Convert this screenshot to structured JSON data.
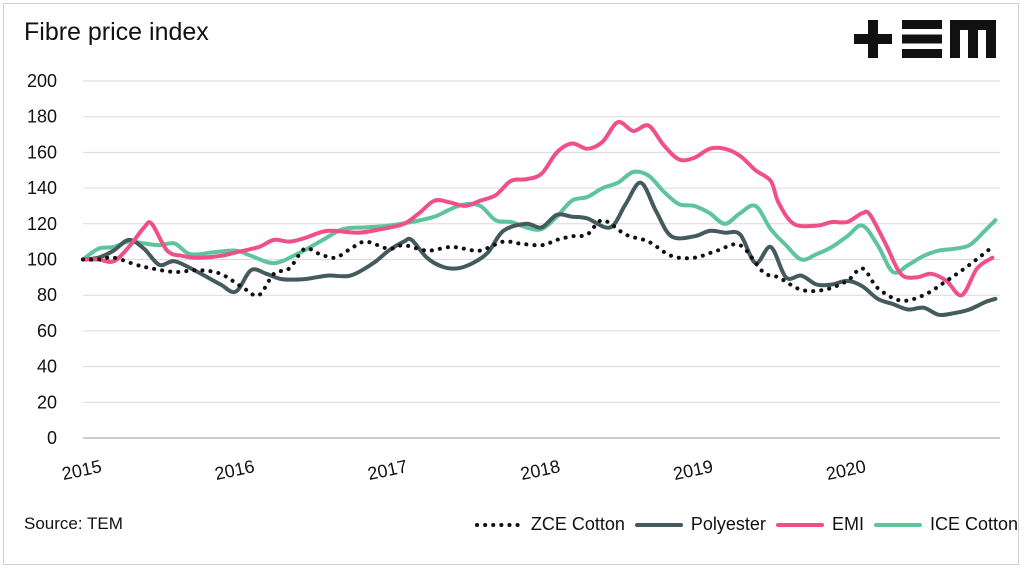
{
  "chart_data": {
    "type": "line",
    "title": "Fibre price index",
    "source": "Source: TEM",
    "brand": "TEM",
    "ylim": [
      0,
      200
    ],
    "yticks": [
      0,
      20,
      40,
      60,
      80,
      100,
      120,
      140,
      160,
      180,
      200
    ],
    "xlim": [
      2015,
      2021
    ],
    "xticks": [
      "2015",
      "2016",
      "2017",
      "2018",
      "2019",
      "2020"
    ],
    "grid": true,
    "legend": "bottom-right",
    "series": [
      {
        "name": "ZCE Cotton",
        "color": "#111111",
        "style": "dotted",
        "x": [
          2015.0,
          2015.1,
          2015.2,
          2015.35,
          2015.45,
          2015.6,
          2015.75,
          2015.9,
          2016.05,
          2016.15,
          2016.25,
          2016.35,
          2016.45,
          2016.55,
          2016.65,
          2016.75,
          2016.85,
          2017.0,
          2017.1,
          2017.25,
          2017.4,
          2017.5,
          2017.6,
          2017.75,
          2017.85,
          2018.0,
          2018.1,
          2018.2,
          2018.3,
          2018.4,
          2018.55,
          2018.7,
          2018.85,
          2019.0,
          2019.15,
          2019.3,
          2019.45,
          2019.55,
          2019.7,
          2019.85,
          2020.0,
          2020.1,
          2020.2,
          2020.35,
          2020.5,
          2020.65,
          2020.8,
          2020.95
        ],
        "y": [
          100,
          100,
          101,
          97,
          95,
          93,
          94,
          92,
          84,
          80,
          92,
          95,
          106,
          103,
          101,
          106,
          110,
          106,
          108,
          105,
          107,
          106,
          105,
          110,
          109,
          108,
          111,
          113,
          114,
          122,
          114,
          110,
          102,
          101,
          105,
          108,
          93,
          90,
          83,
          83,
          88,
          95,
          84,
          77,
          80,
          88,
          97,
          107
        ]
      },
      {
        "name": "Polyester",
        "color": "#455a5d",
        "style": "solid",
        "x": [
          2015.0,
          2015.1,
          2015.2,
          2015.3,
          2015.4,
          2015.5,
          2015.6,
          2015.75,
          2015.9,
          2016.0,
          2016.1,
          2016.2,
          2016.3,
          2016.45,
          2016.6,
          2016.75,
          2016.9,
          2017.0,
          2017.1,
          2017.15,
          2017.25,
          2017.35,
          2017.45,
          2017.55,
          2017.65,
          2017.75,
          2017.9,
          2018.0,
          2018.1,
          2018.2,
          2018.3,
          2018.45,
          2018.55,
          2018.65,
          2018.75,
          2018.85,
          2019.0,
          2019.1,
          2019.2,
          2019.3,
          2019.4,
          2019.5,
          2019.6,
          2019.7,
          2019.8,
          2019.9,
          2020.0,
          2020.1,
          2020.2,
          2020.3,
          2020.4,
          2020.5,
          2020.6,
          2020.7,
          2020.8,
          2020.9,
          2020.97
        ],
        "y": [
          100,
          101,
          105,
          111,
          106,
          97,
          99,
          93,
          86,
          82,
          94,
          92,
          89,
          89,
          91,
          91,
          98,
          105,
          110,
          111,
          101,
          96,
          95,
          98,
          104,
          116,
          120,
          118,
          125,
          124,
          123,
          118,
          131,
          143,
          127,
          113,
          113,
          116,
          115,
          114,
          98,
          107,
          90,
          91,
          86,
          86,
          88,
          85,
          78,
          75,
          72,
          73,
          69,
          70,
          72,
          76,
          78
        ]
      },
      {
        "name": "EMI",
        "color": "#f0508a",
        "style": "solid",
        "x": [
          2015.0,
          2015.1,
          2015.2,
          2015.3,
          2015.4,
          2015.45,
          2015.55,
          2015.65,
          2015.75,
          2015.9,
          2016.0,
          2016.15,
          2016.25,
          2016.35,
          2016.45,
          2016.6,
          2016.8,
          2016.95,
          2017.1,
          2017.2,
          2017.3,
          2017.4,
          2017.5,
          2017.6,
          2017.7,
          2017.8,
          2017.9,
          2018.0,
          2018.1,
          2018.2,
          2018.3,
          2018.4,
          2018.5,
          2018.6,
          2018.7,
          2018.8,
          2018.9,
          2019.0,
          2019.1,
          2019.2,
          2019.3,
          2019.4,
          2019.5,
          2019.55,
          2019.65,
          2019.8,
          2019.9,
          2020.0,
          2020.1,
          2020.15,
          2020.25,
          2020.35,
          2020.45,
          2020.55,
          2020.65,
          2020.75,
          2020.85,
          2020.95
        ],
        "y": [
          100,
          100,
          99,
          107,
          118,
          120,
          105,
          102,
          101,
          102,
          104,
          107,
          111,
          110,
          112,
          116,
          115,
          117,
          120,
          126,
          133,
          132,
          130,
          133,
          136,
          144,
          145,
          148,
          160,
          165,
          162,
          166,
          177,
          172,
          175,
          164,
          156,
          157,
          162,
          162,
          158,
          150,
          144,
          132,
          120,
          119,
          121,
          121,
          126,
          125,
          109,
          92,
          90,
          92,
          88,
          80,
          95,
          101
        ]
      },
      {
        "name": "ICE Cotton",
        "color": "#5ec49c",
        "style": "solid",
        "x": [
          2015.0,
          2015.1,
          2015.2,
          2015.3,
          2015.4,
          2015.5,
          2015.6,
          2015.7,
          2015.85,
          2016.0,
          2016.1,
          2016.25,
          2016.4,
          2016.55,
          2016.7,
          2016.85,
          2017.0,
          2017.15,
          2017.3,
          2017.4,
          2017.5,
          2017.6,
          2017.7,
          2017.8,
          2017.9,
          2018.0,
          2018.1,
          2018.2,
          2018.3,
          2018.4,
          2018.5,
          2018.6,
          2018.7,
          2018.8,
          2018.9,
          2019.0,
          2019.1,
          2019.2,
          2019.3,
          2019.4,
          2019.5,
          2019.6,
          2019.7,
          2019.8,
          2019.9,
          2020.0,
          2020.1,
          2020.2,
          2020.3,
          2020.4,
          2020.5,
          2020.6,
          2020.7,
          2020.8,
          2020.9,
          2020.97
        ],
        "y": [
          100,
          106,
          107,
          110,
          109,
          108,
          109,
          103,
          104,
          105,
          102,
          98,
          103,
          110,
          117,
          118,
          119,
          121,
          124,
          128,
          131,
          130,
          122,
          121,
          118,
          117,
          124,
          133,
          135,
          140,
          143,
          149,
          147,
          138,
          131,
          130,
          126,
          120,
          126,
          130,
          117,
          108,
          100,
          103,
          107,
          113,
          119,
          108,
          93,
          97,
          102,
          105,
          106,
          108,
          116,
          122
        ]
      }
    ]
  }
}
